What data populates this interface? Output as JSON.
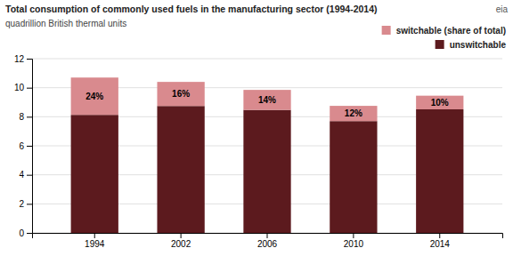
{
  "chart_data": {
    "type": "bar",
    "stacked": true,
    "title": "Total consumption of commonly used fuels in the manufacturing sector (1994-2014)",
    "subtitle": "quadrillion British thermal units",
    "categories": [
      "1994",
      "2002",
      "2006",
      "2010",
      "2014"
    ],
    "series": [
      {
        "name": "unswitchable",
        "color": "#5C1A1E",
        "values": [
          8.13,
          8.74,
          8.47,
          7.7,
          8.51
        ]
      },
      {
        "name": "switchable (share of total)",
        "color": "#D98A8E",
        "values": [
          2.57,
          1.66,
          1.38,
          1.05,
          0.94
        ]
      }
    ],
    "annotations": [
      {
        "text": "24%",
        "x": "1994"
      },
      {
        "text": "16%",
        "x": "2002"
      },
      {
        "text": "14%",
        "x": "2006"
      },
      {
        "text": "12%",
        "x": "2010"
      },
      {
        "text": "10%",
        "x": "2014"
      },
      {
        "text": "eia"
      }
    ],
    "ylim": [
      0,
      12
    ],
    "yticks": [
      0,
      2,
      4,
      6,
      8,
      10,
      12
    ],
    "grid": true,
    "legend": "upper right"
  }
}
